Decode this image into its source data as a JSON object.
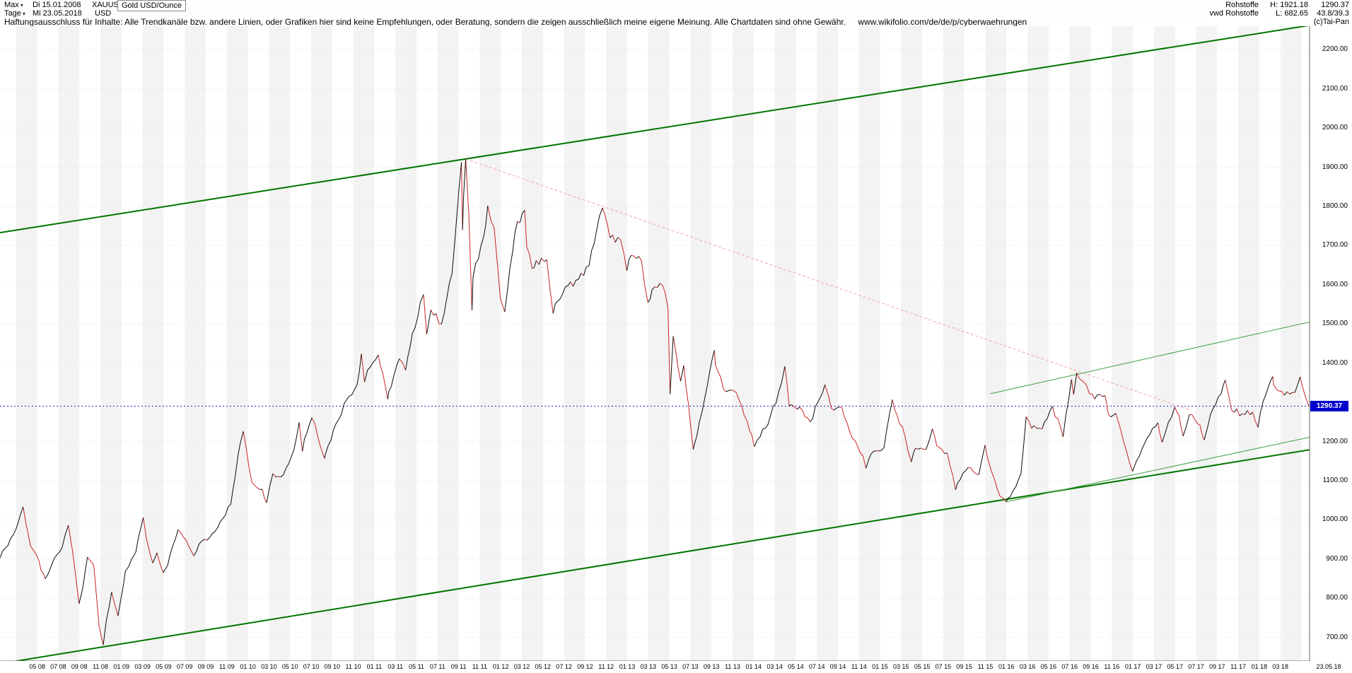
{
  "header": {
    "left": {
      "range_selector": "Max",
      "range_date_from": "Di 15.01.2008",
      "symbol": "XAUUSD",
      "period_selector": "Tage",
      "range_date_to": "Mi 23.05.2018",
      "currency": "USD",
      "instrument_name": "Gold USD/Ounce"
    },
    "right": {
      "category": "Rohstoffe",
      "source": "vwd Rohstoffe",
      "high_label": "H:",
      "high_value": "1921.18",
      "low_label": "L:",
      "low_value": "682.65",
      "last_price": "1290.37",
      "indicator_value": "43.8/39.3",
      "copyright": "(c)Tai-Pan"
    }
  },
  "disclaimer": {
    "text": "Haftungsausschluss für Inhalte: Alle Trendkanäle bzw. andere Linien, oder Grafiken hier sind keine Empfehlungen, oder Beratung, sondern die zeigen ausschließlich meine eigene Meinung. Alle Chartdaten sind ohne Gewähr.",
    "link": "www.wikifolio.com/de/de/p/cyberwaehrungen"
  },
  "price_marker": {
    "value": "1290.37"
  },
  "chart_data": {
    "type": "line",
    "title": "Gold USD/Ounce (XAUUSD), Tage, 15.01.2008 - 23.05.2018",
    "series_name": "XAUUSD",
    "x_unit": "months since 2008-01-15",
    "x_range": [
      0,
      124.3
    ],
    "price_range_visible": [
      640,
      2260
    ],
    "period_high": 1921.18,
    "period_low": 682.65,
    "current_price": 1290.37,
    "colors": {
      "band": "#f3f3f3",
      "grid": "#dcdcdc",
      "up": "#0a0a0a",
      "down": "#cc2222",
      "axis": "#666666"
    },
    "y_ticks": [
      "2200.00",
      "2100.00",
      "2000.00",
      "1900.00",
      "1800.00",
      "1700.00",
      "1600.00",
      "1500.00",
      "1400.00",
      "1200.00",
      "1100.00",
      "1000.00",
      "900.00",
      "800.00",
      "700.00"
    ],
    "x_tick_labels": [
      "05 08",
      "07 08",
      "09 08",
      "11 08",
      "01 09",
      "03 09",
      "05 09",
      "07 09",
      "09 09",
      "11 09",
      "01 10",
      "03 10",
      "05 10",
      "07 10",
      "09 10",
      "11 10",
      "01 11",
      "03 11",
      "05 11",
      "07 11",
      "09 11",
      "11 11",
      "01 12",
      "03 12",
      "05 12",
      "07 12",
      "09 12",
      "11 12",
      "01 13",
      "03 13",
      "05 13",
      "07 13",
      "09 13",
      "11 13",
      "01 14",
      "03 14",
      "05 14",
      "07 14",
      "09 14",
      "11 14",
      "01 15",
      "03 15",
      "05 15",
      "07 15",
      "09 15",
      "11 15",
      "01 16",
      "03 16",
      "05 16",
      "07 16",
      "09 16",
      "11 16",
      "01 17",
      "03 17",
      "05 17",
      "07 17",
      "09 17",
      "11 17",
      "01 18",
      "03 18"
    ],
    "end_date_label": "23.05.18",
    "hline": {
      "price": 1290.37,
      "color": "#2222cc"
    },
    "trend_lines": [
      {
        "name": "upper-channel",
        "color": "#007500",
        "width": 2,
        "from": [
          0,
          1733
        ],
        "to": [
          124.3,
          2262
        ]
      },
      {
        "name": "lower-channel",
        "color": "#007500",
        "width": 2,
        "from": [
          0,
          633
        ],
        "to": [
          124.3,
          1179
        ]
      },
      {
        "name": "inner-resistance",
        "color": "#3fa03f",
        "width": 1,
        "from": [
          94,
          1322
        ],
        "to": [
          124.3,
          1505
        ]
      },
      {
        "name": "inner-support",
        "color": "#3fa03f",
        "width": 1,
        "from": [
          95.5,
          1046
        ],
        "to": [
          124.3,
          1211
        ]
      },
      {
        "name": "downtrend",
        "color": "#f4a3a3",
        "width": 1,
        "dash": "4,3",
        "from": [
          44.2,
          1921
        ],
        "to": [
          113,
          1280
        ]
      }
    ],
    "points": [
      [
        0.0,
        903
      ],
      [
        0.5,
        928
      ],
      [
        1.5,
        975
      ],
      [
        2.2,
        1033
      ],
      [
        2.9,
        933
      ],
      [
        3.5,
        909
      ],
      [
        3.9,
        871
      ],
      [
        4.3,
        850
      ],
      [
        4.9,
        885
      ],
      [
        5.9,
        930
      ],
      [
        6.5,
        986
      ],
      [
        6.9,
        918
      ],
      [
        7.5,
        786
      ],
      [
        7.9,
        833
      ],
      [
        8.3,
        905
      ],
      [
        8.9,
        884
      ],
      [
        9.4,
        730
      ],
      [
        9.8,
        681
      ],
      [
        10.1,
        745
      ],
      [
        10.6,
        816
      ],
      [
        11.2,
        755
      ],
      [
        11.9,
        869
      ],
      [
        12.5,
        900
      ],
      [
        12.9,
        919
      ],
      [
        13.6,
        1006
      ],
      [
        13.9,
        952
      ],
      [
        14.5,
        890
      ],
      [
        14.9,
        916
      ],
      [
        15.5,
        865
      ],
      [
        15.9,
        883
      ],
      [
        16.9,
        975
      ],
      [
        17.9,
        934
      ],
      [
        18.4,
        908
      ],
      [
        18.9,
        939
      ],
      [
        19.9,
        955
      ],
      [
        20.9,
        995
      ],
      [
        21.9,
        1040
      ],
      [
        22.8,
        1195
      ],
      [
        23.1,
        1226
      ],
      [
        23.9,
        1096
      ],
      [
        24.9,
        1078
      ],
      [
        25.3,
        1044
      ],
      [
        25.9,
        1118
      ],
      [
        26.9,
        1115
      ],
      [
        27.9,
        1179
      ],
      [
        28.4,
        1249
      ],
      [
        28.7,
        1175
      ],
      [
        28.9,
        1207
      ],
      [
        29.6,
        1261
      ],
      [
        29.9,
        1244
      ],
      [
        30.8,
        1157
      ],
      [
        30.9,
        1169
      ],
      [
        31.9,
        1246
      ],
      [
        32.9,
        1307
      ],
      [
        33.9,
        1346
      ],
      [
        34.3,
        1424
      ],
      [
        34.6,
        1352
      ],
      [
        34.9,
        1383
      ],
      [
        35.9,
        1421
      ],
      [
        36.8,
        1308
      ],
      [
        36.9,
        1327
      ],
      [
        37.9,
        1411
      ],
      [
        38.5,
        1382
      ],
      [
        38.9,
        1439
      ],
      [
        39.9,
        1556
      ],
      [
        40.2,
        1575
      ],
      [
        40.5,
        1474
      ],
      [
        40.9,
        1536
      ],
      [
        41.9,
        1500
      ],
      [
        42.9,
        1628
      ],
      [
        43.8,
        1913
      ],
      [
        43.9,
        1740
      ],
      [
        44.0,
        1826
      ],
      [
        44.2,
        1921
      ],
      [
        44.5,
        1780
      ],
      [
        44.8,
        1535
      ],
      [
        44.9,
        1620
      ],
      [
        45.9,
        1722
      ],
      [
        46.3,
        1802
      ],
      [
        46.9,
        1746
      ],
      [
        47.5,
        1565
      ],
      [
        47.9,
        1531
      ],
      [
        48.9,
        1737
      ],
      [
        49.8,
        1790
      ],
      [
        50.0,
        1696
      ],
      [
        50.5,
        1642
      ],
      [
        50.9,
        1662
      ],
      [
        51.9,
        1664
      ],
      [
        52.5,
        1527
      ],
      [
        52.9,
        1558
      ],
      [
        53.9,
        1598
      ],
      [
        54.9,
        1614
      ],
      [
        55.9,
        1648
      ],
      [
        56.9,
        1776
      ],
      [
        57.2,
        1796
      ],
      [
        57.9,
        1720
      ],
      [
        58.9,
        1715
      ],
      [
        59.5,
        1636
      ],
      [
        59.9,
        1675
      ],
      [
        60.9,
        1660
      ],
      [
        61.5,
        1555
      ],
      [
        61.9,
        1588
      ],
      [
        62.9,
        1598
      ],
      [
        63.4,
        1540
      ],
      [
        63.6,
        1321
      ],
      [
        63.9,
        1469
      ],
      [
        64.6,
        1354
      ],
      [
        64.9,
        1394
      ],
      [
        65.8,
        1180
      ],
      [
        65.9,
        1192
      ],
      [
        66.9,
        1312
      ],
      [
        67.8,
        1433
      ],
      [
        67.9,
        1396
      ],
      [
        68.9,
        1327
      ],
      [
        69.9,
        1324
      ],
      [
        70.9,
        1253
      ],
      [
        71.6,
        1187
      ],
      [
        71.9,
        1205
      ],
      [
        72.9,
        1244
      ],
      [
        73.9,
        1326
      ],
      [
        74.5,
        1392
      ],
      [
        74.9,
        1291
      ],
      [
        75.9,
        1288
      ],
      [
        76.9,
        1250
      ],
      [
        77.9,
        1315
      ],
      [
        78.3,
        1345
      ],
      [
        78.9,
        1285
      ],
      [
        79.9,
        1287
      ],
      [
        80.9,
        1208
      ],
      [
        81.9,
        1164
      ],
      [
        82.2,
        1132
      ],
      [
        82.9,
        1175
      ],
      [
        83.9,
        1184
      ],
      [
        84.7,
        1307
      ],
      [
        84.9,
        1283
      ],
      [
        85.9,
        1213
      ],
      [
        86.5,
        1148
      ],
      [
        86.9,
        1183
      ],
      [
        87.9,
        1180
      ],
      [
        88.5,
        1232
      ],
      [
        88.9,
        1190
      ],
      [
        89.9,
        1171
      ],
      [
        90.7,
        1077
      ],
      [
        90.9,
        1095
      ],
      [
        91.9,
        1134
      ],
      [
        92.9,
        1115
      ],
      [
        93.5,
        1191
      ],
      [
        93.9,
        1142
      ],
      [
        94.9,
        1061
      ],
      [
        95.5,
        1046
      ],
      [
        95.9,
        1060
      ],
      [
        96.9,
        1118
      ],
      [
        97.4,
        1263
      ],
      [
        97.9,
        1234
      ],
      [
        98.9,
        1232
      ],
      [
        99.9,
        1290
      ],
      [
        100.9,
        1212
      ],
      [
        101.7,
        1358
      ],
      [
        101.9,
        1320
      ],
      [
        102.2,
        1375
      ],
      [
        102.9,
        1351
      ],
      [
        103.9,
        1309
      ],
      [
        104.9,
        1317
      ],
      [
        105.2,
        1270
      ],
      [
        105.9,
        1272
      ],
      [
        106.9,
        1178
      ],
      [
        107.5,
        1124
      ],
      [
        107.9,
        1152
      ],
      [
        108.9,
        1210
      ],
      [
        109.9,
        1248
      ],
      [
        110.3,
        1198
      ],
      [
        110.9,
        1249
      ],
      [
        111.5,
        1288
      ],
      [
        111.9,
        1268
      ],
      [
        112.3,
        1214
      ],
      [
        112.9,
        1269
      ],
      [
        113.9,
        1242
      ],
      [
        114.3,
        1204
      ],
      [
        114.9,
        1269
      ],
      [
        115.9,
        1321
      ],
      [
        116.3,
        1357
      ],
      [
        116.9,
        1280
      ],
      [
        117.9,
        1271
      ],
      [
        118.9,
        1275
      ],
      [
        119.4,
        1236
      ],
      [
        119.9,
        1303
      ],
      [
        120.8,
        1366
      ],
      [
        120.9,
        1345
      ],
      [
        121.9,
        1318
      ],
      [
        122.9,
        1325
      ],
      [
        123.4,
        1365
      ],
      [
        123.9,
        1315
      ],
      [
        124.24,
        1290.37
      ]
    ]
  }
}
